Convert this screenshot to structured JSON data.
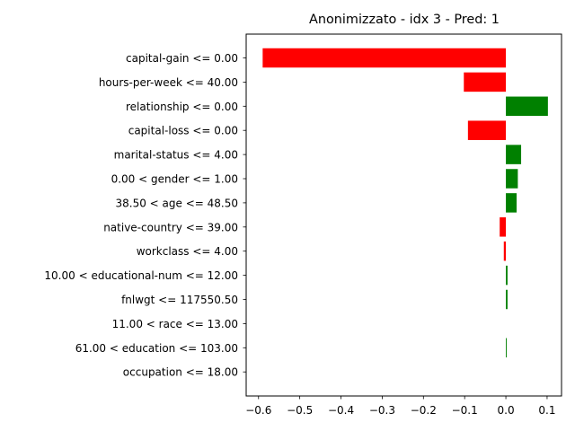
{
  "chart_data": {
    "type": "bar",
    "orientation": "horizontal",
    "title": "Anonimizzato - idx 3 - Pred: 1",
    "xlabel": "",
    "ylabel": "",
    "xlim": [
      -0.63,
      0.135
    ],
    "xticks": [
      {
        "value": -0.6,
        "label": "−0.6"
      },
      {
        "value": -0.5,
        "label": "−0.5"
      },
      {
        "value": -0.4,
        "label": "−0.4"
      },
      {
        "value": -0.3,
        "label": "−0.3"
      },
      {
        "value": -0.2,
        "label": "−0.2"
      },
      {
        "value": -0.1,
        "label": "−0.1"
      },
      {
        "value": 0.0,
        "label": "0.0"
      },
      {
        "value": 0.1,
        "label": "0.1"
      }
    ],
    "grid": false,
    "colors": {
      "positive": "#008000",
      "negative": "#ff0000"
    },
    "categories": [
      "capital-gain <= 0.00",
      "hours-per-week <= 40.00",
      "relationship <= 0.00",
      "capital-loss <= 0.00",
      "marital-status <= 4.00",
      "0.00 < gender <= 1.00",
      "38.50 < age <= 48.50",
      "native-country <= 39.00",
      "workclass <= 4.00",
      "10.00 < educational-num <= 12.00",
      "fnlwgt <= 117550.50",
      "11.00 < race <= 13.00",
      "61.00 < education <= 103.00",
      "occupation <= 18.00"
    ],
    "values": [
      -0.59,
      -0.102,
      0.102,
      -0.092,
      0.037,
      0.029,
      0.026,
      -0.015,
      -0.005,
      0.004,
      0.004,
      0.0,
      0.002,
      0.0
    ]
  }
}
